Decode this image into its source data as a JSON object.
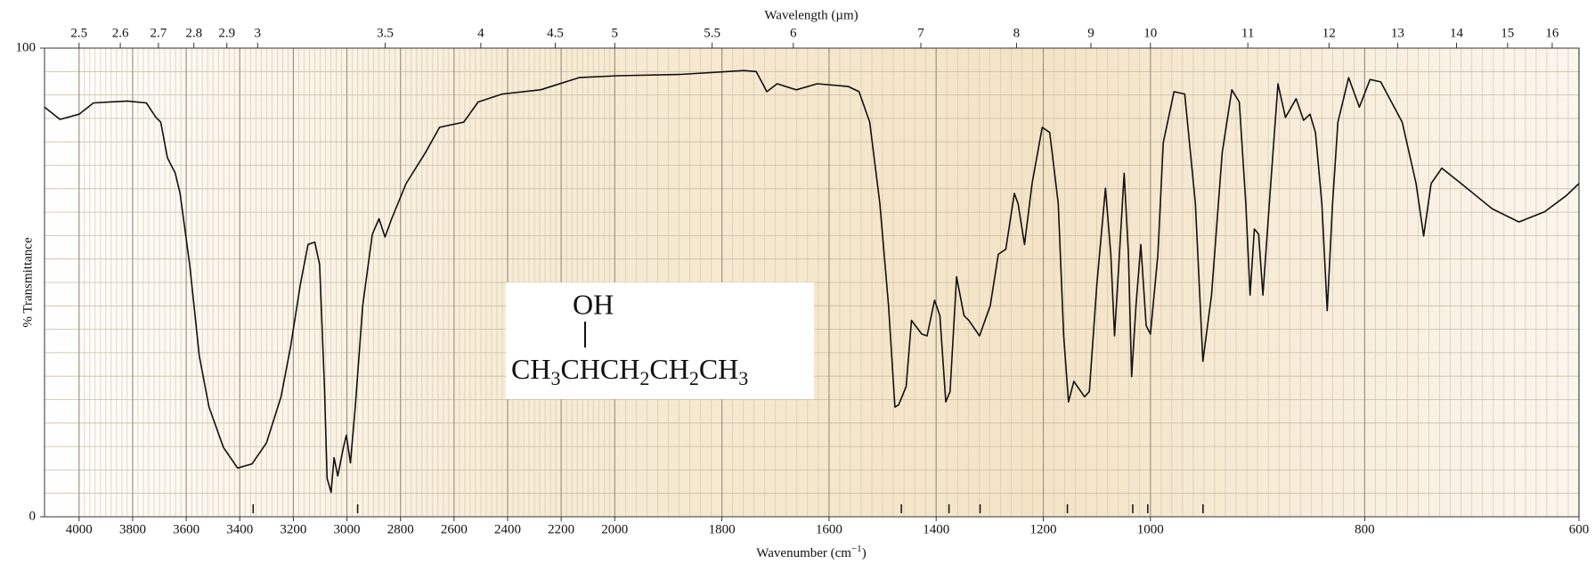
{
  "chart_data": {
    "type": "line",
    "x2_label": "Wavelength (µm)",
    "x_label": [
      "Wavenumber (cm",
      "−1",
      ")"
    ],
    "y_label": "% Transmittance",
    "color": "#111111",
    "grid": true,
    "structure": {
      "top": "OH",
      "formula": [
        "CH",
        "3",
        "CHCH",
        "2",
        "CH",
        "2",
        "CH",
        "3"
      ]
    },
    "xlim": [
      4129,
      600
    ],
    "xticks": [
      4000,
      3800,
      3600,
      3400,
      3200,
      3000,
      2800,
      2600,
      2400,
      2200,
      2000,
      1800,
      1600,
      1400,
      1200,
      1000,
      800,
      600
    ],
    "x2ticks": [
      2.5,
      2.6,
      2.7,
      2.8,
      2.9,
      3,
      3.5,
      4,
      4.5,
      5,
      5.5,
      6,
      7,
      8,
      9,
      10,
      11,
      12,
      13,
      14,
      15,
      16
    ],
    "ylim": [
      0,
      100
    ],
    "yticks": [
      0,
      100
    ],
    "peak_markers": [
      3350,
      2960,
      1465,
      1376,
      1318,
      1155,
      1033,
      1005,
      951
    ],
    "x": [
      4129,
      4071,
      4000,
      3946,
      3820,
      3749,
      3713,
      3695,
      3670,
      3641,
      3623,
      3587,
      3551,
      3515,
      3461,
      3408,
      3354,
      3300,
      3246,
      3210,
      3174,
      3145,
      3120,
      3102,
      3084,
      3074,
      3059,
      3048,
      3034,
      3013,
      3002,
      2987,
      2969,
      2941,
      2905,
      2880,
      2858,
      2833,
      2779,
      2707,
      2654,
      2564,
      2510,
      2420,
      2277,
      2133,
      1994,
      1877,
      1759,
      1736,
      1716,
      1697,
      1661,
      1622,
      1564,
      1544,
      1524,
      1505,
      1489,
      1477,
      1470,
      1456,
      1446,
      1427,
      1417,
      1403,
      1393,
      1382,
      1374,
      1362,
      1348,
      1339,
      1319,
      1299,
      1284,
      1270,
      1254,
      1247,
      1235,
      1221,
      1202,
      1188,
      1172,
      1162,
      1153,
      1143,
      1123,
      1114,
      1100,
      1084,
      1074,
      1067,
      1059,
      1049,
      1041,
      1035,
      1027,
      1018,
      1008,
      1000,
      993,
      988,
      978,
      968,
      958,
      951,
      943,
      933,
      924,
      917,
      911,
      907,
      903,
      899,
      895,
      889,
      881,
      874,
      864,
      857,
      851,
      846,
      840,
      835,
      830,
      825,
      815,
      805,
      795,
      785,
      765,
      752,
      745,
      738,
      728,
      710,
      681,
      656,
      632,
      612,
      600
    ],
    "values": [
      87.4,
      84.8,
      85.9,
      88.3,
      88.7,
      88.3,
      85.2,
      84.2,
      76.6,
      73.3,
      69.0,
      53.8,
      34.3,
      23.4,
      14.8,
      10.4,
      11.3,
      15.8,
      25.6,
      36.4,
      49.5,
      58.1,
      58.6,
      53.8,
      27.8,
      8.2,
      5.2,
      12.6,
      8.7,
      14.8,
      17.4,
      11.5,
      23.4,
      45.1,
      60.3,
      63.6,
      59.7,
      63.6,
      71.1,
      77.7,
      83.1,
      84.2,
      88.5,
      90.2,
      91.1,
      93.7,
      94.1,
      94.4,
      95.2,
      95.0,
      90.7,
      92.4,
      91.1,
      92.4,
      91.8,
      90.7,
      84.2,
      66.8,
      45.1,
      23.4,
      23.9,
      27.8,
      41.9,
      39.0,
      38.6,
      46.2,
      42.9,
      24.5,
      26.7,
      51.2,
      42.9,
      41.9,
      38.6,
      45.1,
      56.0,
      57.1,
      69.0,
      66.8,
      58.1,
      71.1,
      83.1,
      82.0,
      66.8,
      38.6,
      24.5,
      28.9,
      25.6,
      26.7,
      49.5,
      70.1,
      56.0,
      38.6,
      53.8,
      73.3,
      56.0,
      29.9,
      45.1,
      58.1,
      40.8,
      39.0,
      56.0,
      79.8,
      90.7,
      90.2,
      66.8,
      33.2,
      47.3,
      77.7,
      91.1,
      88.5,
      66.8,
      47.3,
      61.4,
      60.3,
      47.3,
      66.8,
      92.4,
      85.2,
      89.2,
      84.6,
      85.9,
      82.0,
      66.8,
      44.0,
      66.8,
      84.2,
      93.7,
      87.4,
      93.3,
      92.8,
      84.2,
      71.1,
      59.9,
      71.1,
      74.4,
      71.1,
      65.7,
      62.9,
      65.1,
      68.5,
      71.1
    ]
  }
}
